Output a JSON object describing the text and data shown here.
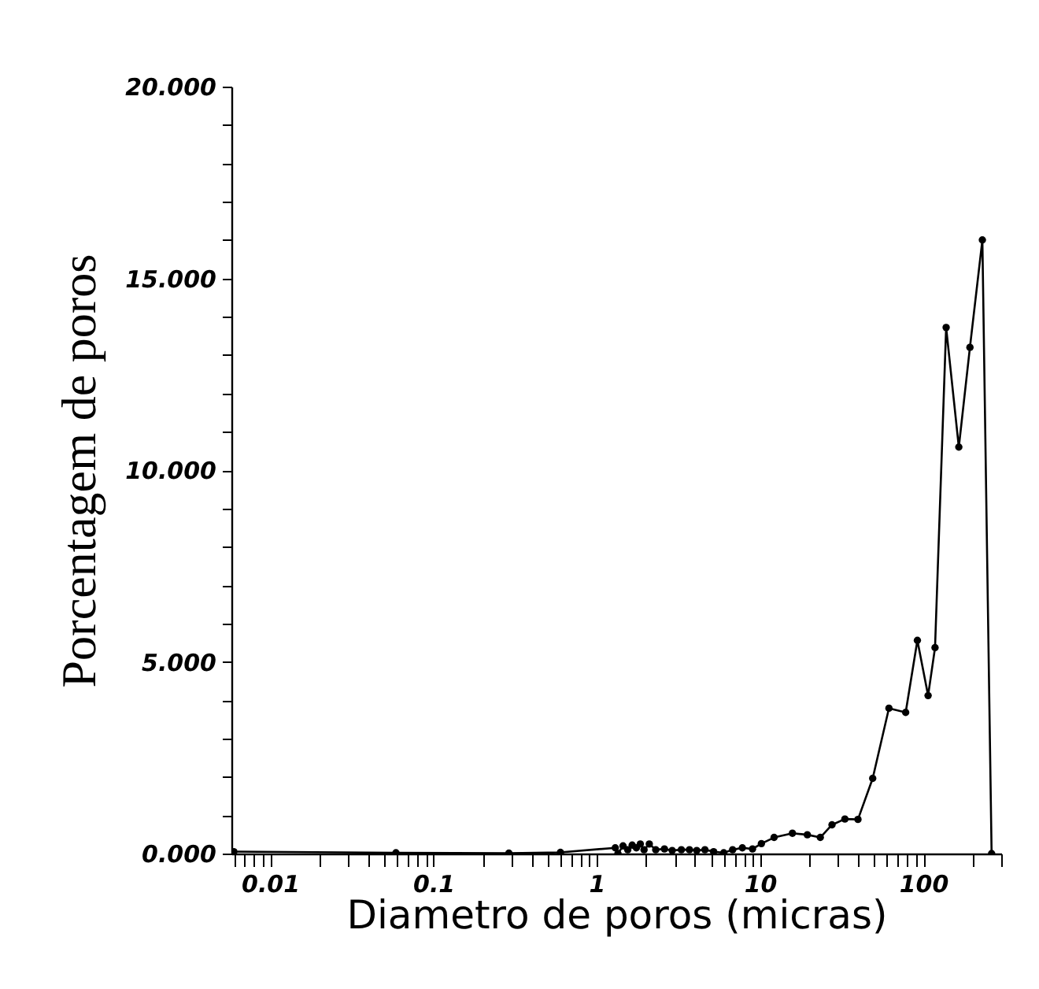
{
  "chart_data": {
    "type": "line",
    "xlabel": "Diametro de poros (micras)",
    "ylabel": "Porcentagem de poros",
    "log": "x",
    "marker": "circle",
    "line_style": "solid",
    "grid": false,
    "xlim": [
      0.0058,
      300
    ],
    "ylim": [
      0,
      20
    ],
    "xticks": [
      {
        "value": 0.006,
        "label": null
      },
      {
        "value": 0.007,
        "label": null
      },
      {
        "value": 0.008,
        "label": null
      },
      {
        "value": 0.009,
        "label": null
      },
      {
        "value": 0.01,
        "label": "0.01"
      },
      {
        "value": 0.02,
        "label": null
      },
      {
        "value": 0.03,
        "label": null
      },
      {
        "value": 0.04,
        "label": null
      },
      {
        "value": 0.05,
        "label": null
      },
      {
        "value": 0.06,
        "label": null
      },
      {
        "value": 0.07,
        "label": null
      },
      {
        "value": 0.08,
        "label": null
      },
      {
        "value": 0.09,
        "label": null
      },
      {
        "value": 0.1,
        "label": "0.1"
      },
      {
        "value": 0.2,
        "label": null
      },
      {
        "value": 0.3,
        "label": null
      },
      {
        "value": 0.4,
        "label": null
      },
      {
        "value": 0.5,
        "label": null
      },
      {
        "value": 0.6,
        "label": null
      },
      {
        "value": 0.7,
        "label": null
      },
      {
        "value": 0.8,
        "label": null
      },
      {
        "value": 0.9,
        "label": null
      },
      1,
      {
        "value": 2,
        "label": null
      },
      {
        "value": 3,
        "label": null
      },
      {
        "value": 4,
        "label": null
      },
      {
        "value": 5,
        "label": null
      },
      {
        "value": 6,
        "label": null
      },
      {
        "value": 7,
        "label": null
      },
      {
        "value": 8,
        "label": null
      },
      {
        "value": 9,
        "label": null
      },
      10,
      {
        "value": 20,
        "label": null
      },
      {
        "value": 30,
        "label": null
      },
      {
        "value": 40,
        "label": null
      },
      {
        "value": 50,
        "label": null
      },
      {
        "value": 60,
        "label": null
      },
      {
        "value": 70,
        "label": null
      },
      {
        "value": 80,
        "label": null
      },
      {
        "value": 90,
        "label": null
      },
      100,
      {
        "value": 200,
        "label": null
      },
      {
        "value": 300,
        "label": null
      }
    ],
    "yticks": [
      {
        "value": 0,
        "label": "0.000"
      },
      {
        "value": 1,
        "label": null
      },
      {
        "value": 2,
        "label": null
      },
      {
        "value": 3,
        "label": null
      },
      {
        "value": 4,
        "label": null
      },
      {
        "value": 5,
        "label": "5.000"
      },
      {
        "value": 6,
        "label": null
      },
      {
        "value": 7,
        "label": null
      },
      {
        "value": 8,
        "label": null
      },
      {
        "value": 9,
        "label": null
      },
      {
        "value": 10,
        "label": "10.000"
      },
      {
        "value": 11,
        "label": null
      },
      {
        "value": 12,
        "label": null
      },
      {
        "value": 13,
        "label": null
      },
      {
        "value": 14,
        "label": null
      },
      {
        "value": 15,
        "label": "15.000"
      },
      {
        "value": 16,
        "label": null
      },
      {
        "value": 17,
        "label": null
      },
      {
        "value": 18,
        "label": null
      },
      {
        "value": 19,
        "label": null
      },
      {
        "value": 20,
        "label": "20.000"
      }
    ],
    "series": [
      {
        "color": "#000000",
        "x": [
          0.006,
          0.059,
          0.29,
          0.6,
          1.3,
          1.35,
          1.45,
          1.55,
          1.65,
          1.75,
          1.85,
          1.95,
          2.1,
          2.3,
          2.6,
          2.9,
          3.3,
          3.7,
          4.1,
          4.6,
          5.2,
          6.0,
          6.8,
          7.8,
          9.0,
          10.2,
          12.2,
          15.8,
          19.5,
          23.4,
          27.6,
          33.1,
          39.8,
          49,
          61.6,
          78,
          92,
          107,
          118,
          138,
          165,
          193,
          230,
          262
        ],
        "values": [
          0.05,
          0.02,
          0.01,
          0.03,
          0.15,
          0.0,
          0.2,
          0.1,
          0.22,
          0.15,
          0.25,
          0.1,
          0.25,
          0.1,
          0.12,
          0.08,
          0.1,
          0.1,
          0.08,
          0.1,
          0.05,
          0.02,
          0.1,
          0.15,
          0.12,
          0.26,
          0.42,
          0.53,
          0.49,
          0.42,
          0.75,
          0.9,
          0.89,
          1.96,
          3.79,
          3.68,
          5.56,
          4.12,
          5.37,
          13.72,
          10.6,
          13.2,
          16.0,
          0.0
        ]
      }
    ]
  }
}
